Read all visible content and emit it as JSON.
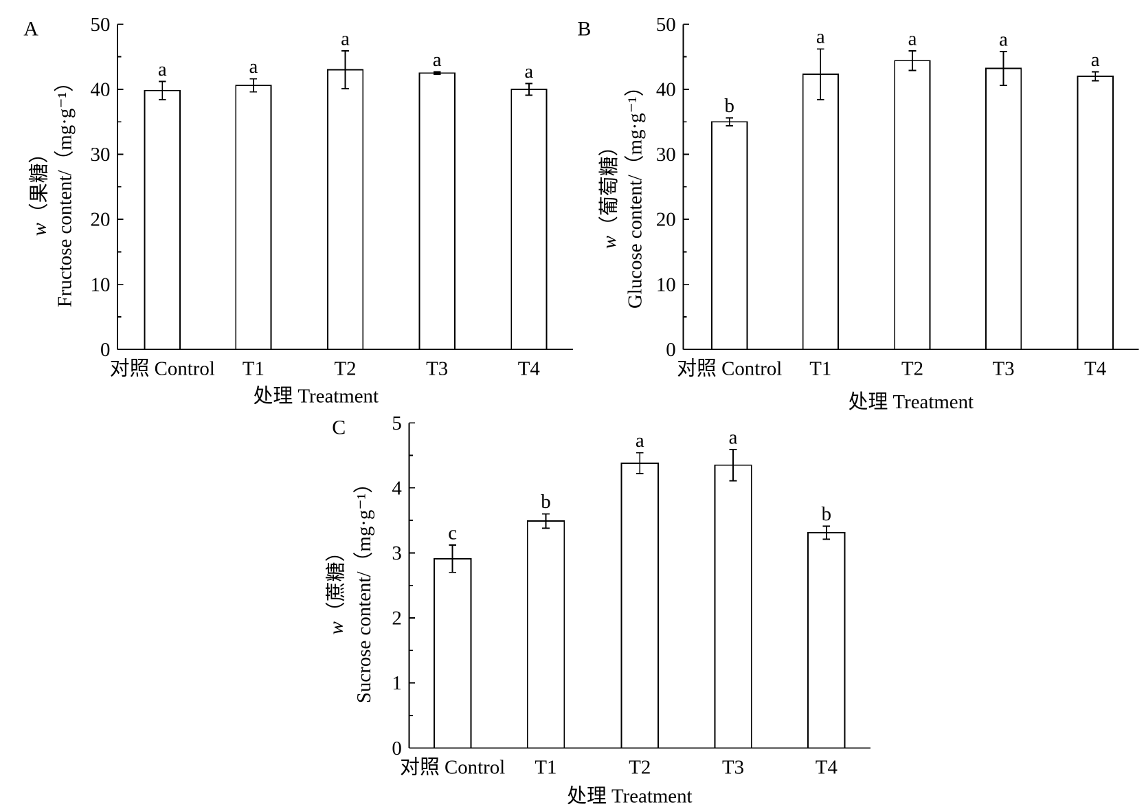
{
  "style": {
    "background": "#ffffff",
    "bar_fill": "#ffffff",
    "line_color": "#000000"
  },
  "chart_data": [
    {
      "panel": "A",
      "type": "bar",
      "categories": [
        "对照 Control",
        "T1",
        "T2",
        "T3",
        "T4"
      ],
      "values": [
        39.8,
        40.6,
        43.0,
        42.5,
        40.0
      ],
      "errors": [
        1.4,
        1.0,
        2.9,
        0.2,
        0.9
      ],
      "letters": [
        "a",
        "a",
        "a",
        "a",
        "a"
      ],
      "ylabel_var": "w",
      "ylabel_name": "（果糖）",
      "ylabel": "Fructose content/（mg·g⁻¹）",
      "xlabel": "处理 Treatment",
      "ylim": [
        0,
        50
      ],
      "yticks": [
        0,
        10,
        20,
        30,
        40,
        50
      ],
      "grid": false
    },
    {
      "panel": "B",
      "type": "bar",
      "categories": [
        "对照 Control",
        "T1",
        "T2",
        "T3",
        "T4"
      ],
      "values": [
        35.0,
        42.3,
        44.4,
        43.2,
        42.0
      ],
      "errors": [
        0.6,
        3.9,
        1.5,
        2.6,
        0.7
      ],
      "letters": [
        "b",
        "a",
        "a",
        "a",
        "a"
      ],
      "ylabel_var": "w",
      "ylabel_name": "（葡萄糖）",
      "ylabel": "Glucose content/（mg·g⁻¹）",
      "xlabel": "处理 Treatment",
      "ylim": [
        0,
        50
      ],
      "yticks": [
        0,
        10,
        20,
        30,
        40,
        50
      ],
      "grid": false
    },
    {
      "panel": "C",
      "type": "bar",
      "categories": [
        "对照 Control",
        "T1",
        "T2",
        "T3",
        "T4"
      ],
      "values": [
        2.91,
        3.49,
        4.38,
        4.35,
        3.31
      ],
      "errors": [
        0.21,
        0.11,
        0.16,
        0.24,
        0.1
      ],
      "letters": [
        "c",
        "b",
        "a",
        "a",
        "b"
      ],
      "ylabel_var": "w",
      "ylabel_name": "（蔗糖）",
      "ylabel": "Sucrose content/（mg·g⁻¹）",
      "xlabel": "处理 Treatment",
      "ylim": [
        0,
        5
      ],
      "yticks": [
        0,
        1,
        2,
        3,
        4,
        5
      ],
      "grid": false
    }
  ]
}
